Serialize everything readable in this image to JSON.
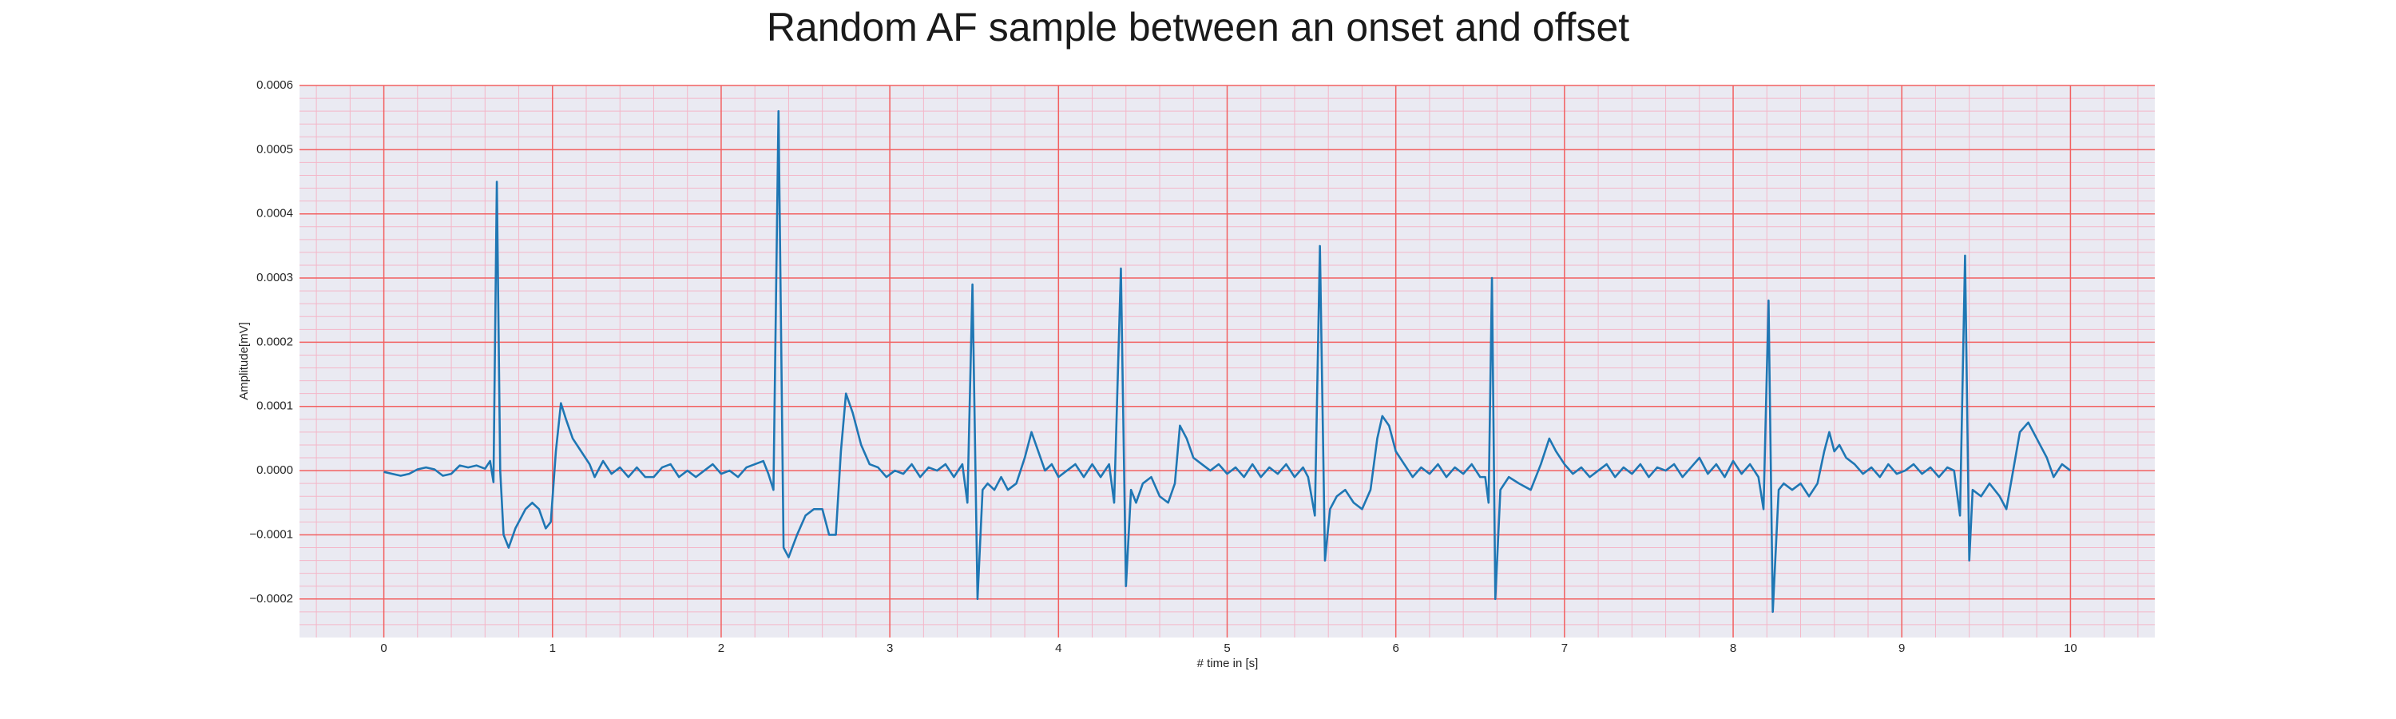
{
  "chart_data": {
    "type": "line",
    "title": "Random AF sample between an onset and offset",
    "xlabel": "# time in [s]",
    "ylabel": "Amplitude[mV]",
    "color": "#1f77b4",
    "grid": true,
    "minor_grid_divisions": 5,
    "xlim": [
      -0.5,
      10.5
    ],
    "ylim": [
      -0.00026,
      0.0006
    ],
    "xticks": [
      0,
      1,
      2,
      3,
      4,
      5,
      6,
      7,
      8,
      9,
      10
    ],
    "yticks": [
      {
        "value": -0.0002,
        "label": "−0.0002"
      },
      {
        "value": -0.0001,
        "label": "−0.0001"
      },
      {
        "value": 0,
        "label": "0.0000"
      },
      0.0001,
      0.0002,
      0.0003,
      0.0004,
      0.0005,
      0.0006
    ],
    "x": [
      0,
      0.05,
      0.1,
      0.15,
      0.2,
      0.25,
      0.3,
      0.35,
      0.4,
      0.45,
      0.5,
      0.55,
      0.6,
      0.63,
      0.65,
      0.67,
      0.69,
      0.71,
      0.74,
      0.78,
      0.84,
      0.88,
      0.92,
      0.96,
      0.99,
      1.02,
      1.05,
      1.08,
      1.12,
      1.17,
      1.22,
      1.25,
      1.3,
      1.35,
      1.4,
      1.45,
      1.5,
      1.55,
      1.6,
      1.65,
      1.7,
      1.75,
      1.8,
      1.85,
      1.9,
      1.95,
      2.0,
      2.05,
      2.1,
      2.15,
      2.2,
      2.25,
      2.28,
      2.31,
      2.34,
      2.37,
      2.4,
      2.45,
      2.5,
      2.55,
      2.6,
      2.64,
      2.68,
      2.71,
      2.74,
      2.78,
      2.83,
      2.88,
      2.93,
      2.98,
      3.03,
      3.08,
      3.13,
      3.18,
      3.23,
      3.28,
      3.33,
      3.38,
      3.43,
      3.46,
      3.49,
      3.52,
      3.55,
      3.58,
      3.62,
      3.66,
      3.7,
      3.75,
      3.8,
      3.84,
      3.88,
      3.92,
      3.96,
      4.0,
      4.05,
      4.1,
      4.15,
      4.2,
      4.25,
      4.3,
      4.33,
      4.37,
      4.4,
      4.43,
      4.46,
      4.5,
      4.55,
      4.6,
      4.65,
      4.69,
      4.72,
      4.76,
      4.8,
      4.85,
      4.9,
      4.95,
      5.0,
      5.05,
      5.1,
      5.15,
      5.2,
      5.25,
      5.3,
      5.35,
      5.4,
      5.45,
      5.48,
      5.52,
      5.55,
      5.58,
      5.61,
      5.65,
      5.7,
      5.75,
      5.8,
      5.85,
      5.89,
      5.92,
      5.96,
      6.0,
      6.05,
      6.1,
      6.15,
      6.2,
      6.25,
      6.3,
      6.35,
      6.4,
      6.45,
      6.5,
      6.53,
      6.55,
      6.57,
      6.59,
      6.62,
      6.67,
      6.73,
      6.8,
      6.86,
      6.91,
      6.95,
      7.0,
      7.05,
      7.1,
      7.15,
      7.2,
      7.25,
      7.3,
      7.35,
      7.4,
      7.45,
      7.5,
      7.55,
      7.6,
      7.65,
      7.7,
      7.75,
      7.8,
      7.85,
      7.9,
      7.95,
      8.0,
      8.05,
      8.1,
      8.15,
      8.18,
      8.21,
      8.235,
      8.27,
      8.3,
      8.35,
      8.4,
      8.45,
      8.5,
      8.54,
      8.57,
      8.6,
      8.63,
      8.67,
      8.72,
      8.77,
      8.82,
      8.87,
      8.92,
      8.97,
      9.02,
      9.07,
      9.12,
      9.17,
      9.22,
      9.27,
      9.31,
      9.345,
      9.375,
      9.4,
      9.42,
      9.47,
      9.52,
      9.58,
      9.62,
      9.66,
      9.7,
      9.75,
      9.8,
      9.86,
      9.9,
      9.95,
      10.0
    ],
    "values": [
      -2e-06,
      -5e-06,
      -8e-06,
      -5e-06,
      2e-06,
      5e-06,
      2e-06,
      -8e-06,
      -5e-06,
      8e-06,
      5e-06,
      8e-06,
      3e-06,
      1.5e-05,
      -1.8e-05,
      0.00045,
      0,
      -0.0001,
      -0.00012,
      -9e-05,
      -6e-05,
      -5e-05,
      -6e-05,
      -9e-05,
      -8e-05,
      3e-05,
      0.000105,
      8e-05,
      5e-05,
      3e-05,
      1e-05,
      -1e-05,
      1.5e-05,
      -5e-06,
      5e-06,
      -1e-05,
      5e-06,
      -1e-05,
      -1e-05,
      5e-06,
      1e-05,
      -1e-05,
      0,
      -1e-05,
      0,
      1e-05,
      -5e-06,
      0,
      -1e-05,
      5e-06,
      1e-05,
      1.5e-05,
      -5e-06,
      -3e-05,
      0.00056,
      -0.00012,
      -0.000135,
      -0.0001,
      -7e-05,
      -6e-05,
      -6e-05,
      -0.0001,
      -0.0001,
      3e-05,
      0.00012,
      9e-05,
      4e-05,
      1e-05,
      5e-06,
      -1e-05,
      0,
      -5e-06,
      1e-05,
      -1e-05,
      5e-06,
      0,
      1e-05,
      -1e-05,
      1e-05,
      -5e-05,
      0.00029,
      -0.0002,
      -3e-05,
      -2e-05,
      -3e-05,
      -1e-05,
      -3e-05,
      -2e-05,
      2e-05,
      6e-05,
      3e-05,
      0,
      1e-05,
      -1e-05,
      0,
      1e-05,
      -1e-05,
      1e-05,
      -1e-05,
      1e-05,
      -5e-05,
      0.000315,
      -0.00018,
      -3e-05,
      -5e-05,
      -2e-05,
      -1e-05,
      -4e-05,
      -5e-05,
      -2e-05,
      7e-05,
      5e-05,
      2e-05,
      1e-05,
      0,
      1e-05,
      -5e-06,
      5e-06,
      -1e-05,
      1e-05,
      -1e-05,
      5e-06,
      -5e-06,
      1e-05,
      -1e-05,
      5e-06,
      -1e-05,
      -7e-05,
      0.00035,
      -0.00014,
      -6e-05,
      -4e-05,
      -3e-05,
      -5e-05,
      -6e-05,
      -3e-05,
      5e-05,
      8.5e-05,
      7e-05,
      3e-05,
      1e-05,
      -1e-05,
      5e-06,
      -5e-06,
      1e-05,
      -1e-05,
      5e-06,
      -5e-06,
      1e-05,
      -1e-05,
      -1e-05,
      -5e-05,
      0.0003,
      -0.0002,
      -3e-05,
      -1e-05,
      -2e-05,
      -3e-05,
      1e-05,
      5e-05,
      3e-05,
      1e-05,
      -5e-06,
      5e-06,
      -1e-05,
      0,
      1e-05,
      -1e-05,
      5e-06,
      -5e-06,
      1e-05,
      -1e-05,
      5e-06,
      0,
      1e-05,
      -1e-05,
      5e-06,
      2e-05,
      -5e-06,
      1e-05,
      -1e-05,
      1.5e-05,
      -5e-06,
      1e-05,
      -1e-05,
      -6e-05,
      0.000265,
      -0.00022,
      -3e-05,
      -2e-05,
      -3e-05,
      -2e-05,
      -4e-05,
      -2e-05,
      3e-05,
      6e-05,
      3e-05,
      4e-05,
      2e-05,
      1e-05,
      -5e-06,
      5e-06,
      -1e-05,
      1e-05,
      -5e-06,
      0,
      1e-05,
      -5e-06,
      5e-06,
      -1e-05,
      5e-06,
      0,
      -7e-05,
      0.000335,
      -0.00014,
      -3e-05,
      -4e-05,
      -2e-05,
      -4e-05,
      -6e-05,
      0,
      6e-05,
      7.5e-05,
      5e-05,
      2e-05,
      -1e-05,
      1e-05,
      0
    ]
  }
}
